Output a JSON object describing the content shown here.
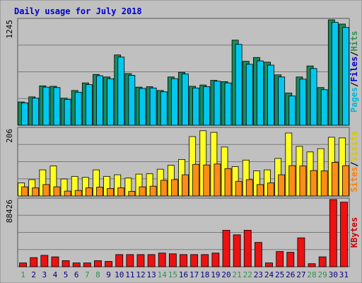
{
  "chart_data": {
    "type": "bar",
    "title": "Daily usage for July 2018",
    "days": [
      "1",
      "2",
      "3",
      "4",
      "5",
      "6",
      "7",
      "8",
      "9",
      "10",
      "11",
      "12",
      "13",
      "14",
      "15",
      "16",
      "17",
      "18",
      "19",
      "20",
      "21",
      "22",
      "23",
      "24",
      "25",
      "26",
      "27",
      "28",
      "29",
      "30",
      "31"
    ],
    "weekend_days": [
      "1",
      "7",
      "8",
      "14",
      "15",
      "21",
      "22",
      "28",
      "29"
    ],
    "weekend_color": "#2f8f4f",
    "weekday_color": "#000080",
    "panels": [
      {
        "name": "hits-files-pages",
        "ymax_label": "1245",
        "ylim": [
          0,
          1245
        ],
        "legend": [
          {
            "label": "Pages",
            "color": "#00b8d8"
          },
          {
            "label": "/",
            "color": "#000000"
          },
          {
            "label": "Files",
            "color": "#0000cc"
          },
          {
            "label": "/",
            "color": "#000000"
          },
          {
            "label": "Hits",
            "color": "#2f8f4f"
          }
        ],
        "series": [
          {
            "name": "Hits",
            "color": "#1a8a5c",
            "values": [
              275,
              335,
              465,
              460,
              320,
              410,
              500,
              600,
              570,
              830,
              610,
              450,
              455,
              410,
              570,
              625,
              460,
              475,
              530,
              515,
              1005,
              755,
              800,
              745,
              595,
              380,
              570,
              700,
              445,
              1245,
              1195
            ]
          },
          {
            "name": "Files",
            "color": "#00c8f0",
            "values": [
              265,
              320,
              450,
              445,
              305,
              390,
              480,
              585,
              550,
              805,
              590,
              435,
              440,
              395,
              550,
              605,
              440,
              455,
              520,
              500,
              955,
              720,
              760,
              710,
              570,
              345,
              545,
              670,
              420,
              1215,
              1155
            ]
          }
        ]
      },
      {
        "name": "visits-sites",
        "ymax_label": "206",
        "ylim": [
          0,
          206
        ],
        "legend": [
          {
            "label": "Sites",
            "color": "#ff8000"
          },
          {
            "label": "/",
            "color": "#000000"
          },
          {
            "label": "Visits",
            "color": "#d8c800"
          }
        ],
        "series": [
          {
            "name": "Visits",
            "color": "#ffff22",
            "values": [
              40,
              50,
              80,
              92,
              52,
              60,
              57,
              80,
              60,
              65,
              55,
              67,
              68,
              82,
              94,
              112,
              182,
              200,
              195,
              150,
              90,
              110,
              77,
              80,
              115,
              193,
              152,
              135,
              145,
              180,
              178
            ]
          },
          {
            "name": "Sites",
            "color": "#ff8c1a",
            "values": [
              28,
              25,
              35,
              28,
              15,
              17,
              25,
              27,
              23,
              25,
              14,
              28,
              30,
              48,
              50,
              65,
              97,
              95,
              98,
              84,
              45,
              50,
              35,
              40,
              65,
              93,
              92,
              78,
              77,
              103,
              93
            ]
          }
        ]
      },
      {
        "name": "kbytes",
        "ymax_label": "88426",
        "ylim": [
          0,
          88426
        ],
        "legend": [
          {
            "label": "KBytes",
            "color": "#cc0000"
          }
        ],
        "series": [
          {
            "name": "KBytes",
            "color": "#ee1111",
            "values": [
              5000,
              12000,
              15000,
              13000,
              8000,
              5000,
              5000,
              8000,
              7000,
              16000,
              16000,
              16000,
              16000,
              18000,
              17000,
              16000,
              16000,
              16000,
              18000,
              48000,
              42000,
              48000,
              32000,
              5000,
              20000,
              19000,
              38000,
              4000,
              13000,
              88426,
              85000
            ]
          }
        ]
      }
    ]
  }
}
